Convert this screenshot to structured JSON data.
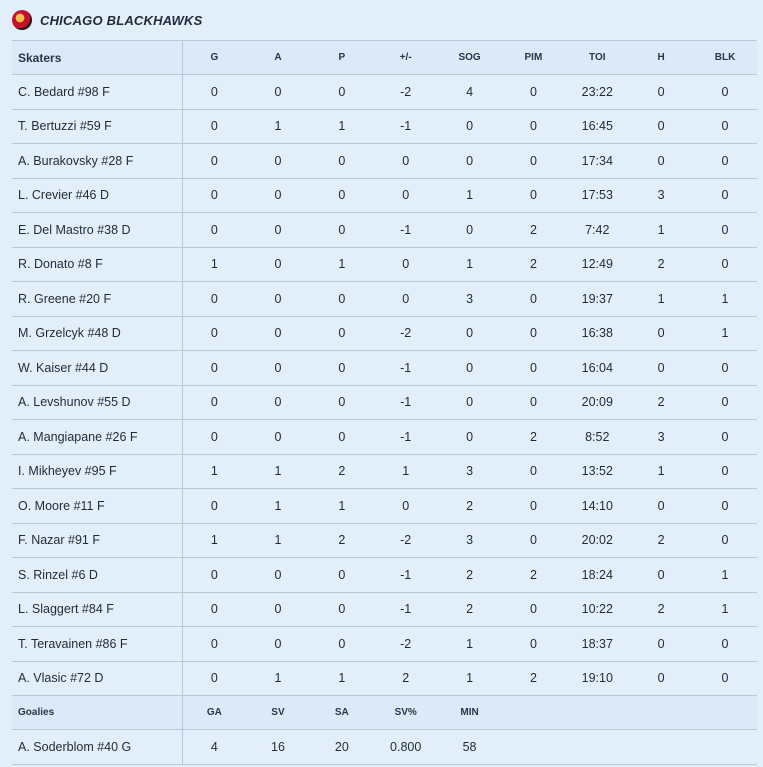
{
  "team": {
    "name": "CHICAGO BLACKHAWKS"
  },
  "skaters": {
    "headers": [
      "Skaters",
      "G",
      "A",
      "P",
      "+/-",
      "SOG",
      "PIM",
      "TOI",
      "H",
      "BLK"
    ],
    "rows": [
      [
        "C. Bedard #98 F",
        "0",
        "0",
        "0",
        "-2",
        "4",
        "0",
        "23:22",
        "0",
        "0"
      ],
      [
        "T. Bertuzzi #59 F",
        "0",
        "1",
        "1",
        "-1",
        "0",
        "0",
        "16:45",
        "0",
        "0"
      ],
      [
        "A. Burakovsky #28 F",
        "0",
        "0",
        "0",
        "0",
        "0",
        "0",
        "17:34",
        "0",
        "0"
      ],
      [
        "L. Crevier #46 D",
        "0",
        "0",
        "0",
        "0",
        "1",
        "0",
        "17:53",
        "3",
        "0"
      ],
      [
        "E. Del Mastro #38 D",
        "0",
        "0",
        "0",
        "-1",
        "0",
        "2",
        "7:42",
        "1",
        "0"
      ],
      [
        "R. Donato #8 F",
        "1",
        "0",
        "1",
        "0",
        "1",
        "2",
        "12:49",
        "2",
        "0"
      ],
      [
        "R. Greene #20 F",
        "0",
        "0",
        "0",
        "0",
        "3",
        "0",
        "19:37",
        "1",
        "1"
      ],
      [
        "M. Grzelcyk #48 D",
        "0",
        "0",
        "0",
        "-2",
        "0",
        "0",
        "16:38",
        "0",
        "1"
      ],
      [
        "W. Kaiser #44 D",
        "0",
        "0",
        "0",
        "-1",
        "0",
        "0",
        "16:04",
        "0",
        "0"
      ],
      [
        "A. Levshunov #55 D",
        "0",
        "0",
        "0",
        "-1",
        "0",
        "0",
        "20:09",
        "2",
        "0"
      ],
      [
        "A. Mangiapane #26 F",
        "0",
        "0",
        "0",
        "-1",
        "0",
        "2",
        "8:52",
        "3",
        "0"
      ],
      [
        "I. Mikheyev #95 F",
        "1",
        "1",
        "2",
        "1",
        "3",
        "0",
        "13:52",
        "1",
        "0"
      ],
      [
        "O. Moore #11 F",
        "0",
        "1",
        "1",
        "0",
        "2",
        "0",
        "14:10",
        "0",
        "0"
      ],
      [
        "F. Nazar #91 F",
        "1",
        "1",
        "2",
        "-2",
        "3",
        "0",
        "20:02",
        "2",
        "0"
      ],
      [
        "S. Rinzel #6 D",
        "0",
        "0",
        "0",
        "-1",
        "2",
        "2",
        "18:24",
        "0",
        "1"
      ],
      [
        "L. Slaggert #84 F",
        "0",
        "0",
        "0",
        "-1",
        "2",
        "0",
        "10:22",
        "2",
        "1"
      ],
      [
        "T. Teravainen #86 F",
        "0",
        "0",
        "0",
        "-2",
        "1",
        "0",
        "18:37",
        "0",
        "0"
      ],
      [
        "A. Vlasic #72 D",
        "0",
        "1",
        "1",
        "2",
        "1",
        "2",
        "19:10",
        "0",
        "0"
      ]
    ]
  },
  "goalies": {
    "headers": [
      "Goalies",
      "GA",
      "SV",
      "SA",
      "SV%",
      "MIN"
    ],
    "rows": [
      [
        "A. Soderblom #40 G",
        "4",
        "16",
        "20",
        "0.800",
        "58"
      ]
    ]
  },
  "icons": {
    "team_logo": "blackhawks-logo-icon"
  }
}
